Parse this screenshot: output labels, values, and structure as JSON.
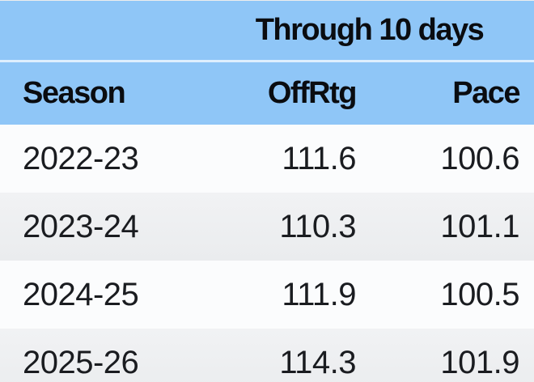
{
  "colors": {
    "header_blue": "#8FC6F7",
    "header_divider": "#DFEFFE",
    "row_plain": "#FBFCFD",
    "row_stripe": "#ECEDEF",
    "header_text": "#0A0C10",
    "data_text": "#1A1C20"
  },
  "chart_data": {
    "type": "table",
    "title": "Through 10 days",
    "columns": [
      "Season",
      "OffRtg",
      "Pace"
    ],
    "rows": [
      [
        "2022-23",
        "111.6",
        "100.6"
      ],
      [
        "2023-24",
        "110.3",
        "101.1"
      ],
      [
        "2024-25",
        "111.9",
        "100.5"
      ],
      [
        "2025-26",
        "114.3",
        "101.9"
      ]
    ],
    "layout_hints": {
      "title_spans_columns": [
        "OffRtg",
        "Pace"
      ],
      "season_alignment": "left",
      "value_alignment": "right",
      "zebra_striping": true,
      "last_row_clipped_by_viewport": true
    }
  }
}
